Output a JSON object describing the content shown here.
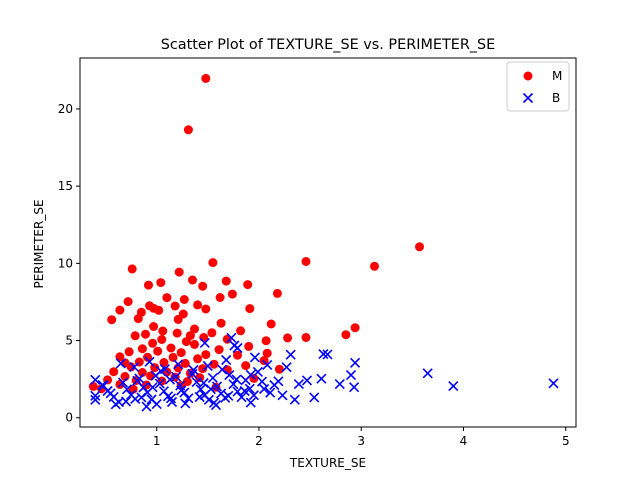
{
  "chart_data": {
    "type": "scatter",
    "title": "Scatter Plot of TEXTURE_SE vs. PERIMETER_SE",
    "xlabel": "TEXTURE_SE",
    "ylabel": "PERIMETER_SE",
    "xlim": [
      0.25,
      5.1
    ],
    "ylim": [
      -0.6,
      23.3
    ],
    "xticks": [
      1,
      2,
      3,
      4,
      5
    ],
    "yticks": [
      0,
      5,
      10,
      15,
      20
    ],
    "grid": false,
    "legend_position": "top-right",
    "series": [
      {
        "name": "M",
        "color": "#ff0000",
        "marker": "circle",
        "points": [
          [
            1.48,
            21.98
          ],
          [
            1.31,
            18.65
          ],
          [
            3.57,
            11.07
          ],
          [
            2.46,
            10.12
          ],
          [
            3.13,
            9.81
          ],
          [
            1.55,
            10.05
          ],
          [
            0.76,
            9.64
          ],
          [
            1.22,
            9.43
          ],
          [
            1.35,
            8.92
          ],
          [
            1.45,
            8.52
          ],
          [
            1.68,
            8.85
          ],
          [
            0.92,
            8.59
          ],
          [
            1.04,
            8.75
          ],
          [
            1.89,
            8.62
          ],
          [
            2.18,
            8.05
          ],
          [
            1.74,
            8.01
          ],
          [
            1.27,
            7.66
          ],
          [
            1.62,
            7.79
          ],
          [
            1.1,
            7.78
          ],
          [
            0.72,
            7.52
          ],
          [
            0.93,
            7.25
          ],
          [
            0.97,
            7.09
          ],
          [
            1.18,
            7.24
          ],
          [
            1.4,
            7.31
          ],
          [
            1.48,
            7.04
          ],
          [
            1.91,
            7.07
          ],
          [
            0.64,
            6.97
          ],
          [
            0.85,
            6.83
          ],
          [
            1.02,
            6.96
          ],
          [
            1.26,
            6.72
          ],
          [
            0.56,
            6.35
          ],
          [
            0.82,
            6.42
          ],
          [
            1.21,
            6.37
          ],
          [
            1.63,
            6.12
          ],
          [
            2.12,
            6.07
          ],
          [
            0.97,
            5.91
          ],
          [
            1.37,
            5.75
          ],
          [
            2.94,
            5.83
          ],
          [
            1.06,
            5.62
          ],
          [
            1.54,
            5.5
          ],
          [
            1.82,
            5.63
          ],
          [
            0.89,
            5.41
          ],
          [
            1.2,
            5.48
          ],
          [
            1.33,
            5.32
          ],
          [
            2.46,
            5.2
          ],
          [
            2.28,
            5.17
          ],
          [
            2.85,
            5.38
          ],
          [
            0.79,
            5.31
          ],
          [
            1.46,
            5.2
          ],
          [
            1.69,
            5.09
          ],
          [
            1.05,
            5.07
          ],
          [
            1.29,
            4.93
          ],
          [
            2.07,
            4.99
          ],
          [
            0.96,
            4.82
          ],
          [
            1.37,
            4.75
          ],
          [
            1.9,
            4.62
          ],
          [
            1.14,
            4.52
          ],
          [
            0.86,
            4.47
          ],
          [
            1.61,
            4.41
          ],
          [
            2.08,
            4.18
          ],
          [
            0.73,
            4.27
          ],
          [
            1.01,
            4.31
          ],
          [
            1.24,
            4.22
          ],
          [
            1.48,
            4.09
          ],
          [
            1.79,
            4.05
          ],
          [
            0.64,
            3.95
          ],
          [
            0.91,
            3.92
          ],
          [
            1.16,
            3.91
          ],
          [
            1.4,
            3.82
          ],
          [
            2.05,
            3.7
          ],
          [
            0.69,
            3.55
          ],
          [
            0.83,
            3.61
          ],
          [
            1.07,
            3.58
          ],
          [
            1.28,
            3.52
          ],
          [
            1.56,
            3.47
          ],
          [
            1.87,
            3.38
          ],
          [
            0.75,
            3.29
          ],
          [
            0.98,
            3.25
          ],
          [
            1.21,
            3.22
          ],
          [
            1.45,
            3.18
          ],
          [
            1.69,
            3.11
          ],
          [
            2.2,
            3.14
          ],
          [
            0.58,
            2.98
          ],
          [
            0.86,
            2.93
          ],
          [
            1.1,
            2.97
          ],
          [
            1.33,
            2.88
          ],
          [
            0.69,
            2.67
          ],
          [
            0.94,
            2.71
          ],
          [
            1.18,
            2.63
          ],
          [
            1.42,
            2.6
          ],
          [
            1.95,
            2.55
          ],
          [
            0.52,
            2.45
          ],
          [
            0.8,
            2.41
          ],
          [
            1.05,
            2.38
          ],
          [
            1.3,
            2.35
          ],
          [
            0.38,
            2.03
          ],
          [
            0.64,
            2.16
          ],
          [
            0.9,
            2.12
          ],
          [
            1.24,
            2.08
          ],
          [
            0.46,
            1.88
          ],
          [
            0.77,
            1.85
          ],
          [
            1.58,
            1.97
          ]
        ]
      },
      {
        "name": "B",
        "color": "#0000ff",
        "marker": "x",
        "points": [
          [
            4.88,
            2.23
          ],
          [
            3.9,
            2.05
          ],
          [
            3.65,
            2.88
          ],
          [
            2.94,
            3.56
          ],
          [
            2.63,
            4.12
          ],
          [
            2.67,
            4.1
          ],
          [
            2.31,
            4.08
          ],
          [
            2.27,
            3.27
          ],
          [
            2.9,
            2.76
          ],
          [
            2.79,
            2.18
          ],
          [
            2.93,
            1.98
          ],
          [
            2.54,
            1.32
          ],
          [
            2.35,
            1.17
          ],
          [
            2.47,
            2.42
          ],
          [
            2.61,
            2.53
          ],
          [
            2.39,
            2.18
          ],
          [
            2.19,
            2.36
          ],
          [
            2.08,
            3.42
          ],
          [
            1.96,
            3.91
          ],
          [
            1.73,
            5.18
          ],
          [
            1.76,
            4.68
          ],
          [
            1.79,
            4.52
          ],
          [
            1.47,
            4.85
          ],
          [
            1.68,
            3.74
          ],
          [
            1.92,
            2.78
          ],
          [
            2.05,
            1.86
          ],
          [
            1.92,
            0.98
          ],
          [
            1.58,
            0.82
          ],
          [
            0.9,
            0.72
          ],
          [
            0.6,
            0.87
          ],
          [
            0.4,
            1.16
          ],
          [
            0.4,
            1.42
          ],
          [
            0.4,
            2.46
          ],
          [
            0.47,
            2.12
          ],
          [
            0.52,
            1.73
          ],
          [
            0.58,
            1.35
          ],
          [
            0.63,
            1.01
          ],
          [
            0.67,
            2.28
          ],
          [
            0.71,
            1.84
          ],
          [
            0.75,
            1.48
          ],
          [
            0.79,
            1.22
          ],
          [
            0.83,
            2.54
          ],
          [
            0.87,
            1.96
          ],
          [
            0.91,
            1.64
          ],
          [
            0.95,
            1.18
          ],
          [
            0.99,
            2.72
          ],
          [
            1.03,
            2.21
          ],
          [
            1.07,
            1.72
          ],
          [
            1.11,
            1.39
          ],
          [
            1.15,
            1.02
          ],
          [
            1.19,
            2.66
          ],
          [
            1.23,
            2.08
          ],
          [
            1.27,
            1.63
          ],
          [
            1.31,
            1.26
          ],
          [
            1.35,
            2.84
          ],
          [
            1.39,
            2.31
          ],
          [
            1.43,
            1.84
          ],
          [
            1.47,
            1.47
          ],
          [
            1.51,
            1.16
          ],
          [
            1.55,
            2.58
          ],
          [
            1.59,
            2.03
          ],
          [
            1.63,
            1.57
          ],
          [
            1.67,
            1.29
          ],
          [
            1.71,
            2.76
          ],
          [
            1.75,
            2.17
          ],
          [
            1.79,
            1.69
          ],
          [
            1.83,
            1.33
          ],
          [
            1.87,
            2.43
          ],
          [
            1.91,
            1.88
          ],
          [
            1.95,
            1.46
          ],
          [
            1.99,
            2.97
          ],
          [
            2.03,
            2.34
          ],
          [
            2.11,
            1.62
          ],
          [
            2.15,
            2.12
          ],
          [
            0.65,
            3.52
          ],
          [
            0.78,
            3.28
          ],
          [
            0.93,
            3.63
          ],
          [
            1.08,
            3.15
          ],
          [
            1.21,
            3.46
          ],
          [
            1.36,
            3.09
          ],
          [
            1.5,
            3.35
          ],
          [
            1.64,
            3.12
          ],
          [
            0.55,
            1.58
          ],
          [
            0.7,
            1.05
          ],
          [
            0.85,
            1.32
          ],
          [
            1.0,
            0.88
          ],
          [
            1.14,
            1.26
          ],
          [
            1.28,
            0.93
          ],
          [
            1.42,
            1.34
          ],
          [
            1.56,
            0.97
          ],
          [
            1.7,
            1.42
          ],
          [
            0.48,
            2.07
          ],
          [
            0.81,
            2.39
          ],
          [
            1.13,
            2.47
          ],
          [
            1.46,
            2.25
          ],
          [
            1.78,
            2.48
          ],
          [
            0.96,
            1.97
          ],
          [
            1.24,
            1.77
          ],
          [
            1.53,
            1.85
          ],
          [
            1.86,
            1.73
          ],
          [
            2.23,
            1.45
          ],
          [
            1.04,
            3.02
          ]
        ]
      }
    ]
  }
}
